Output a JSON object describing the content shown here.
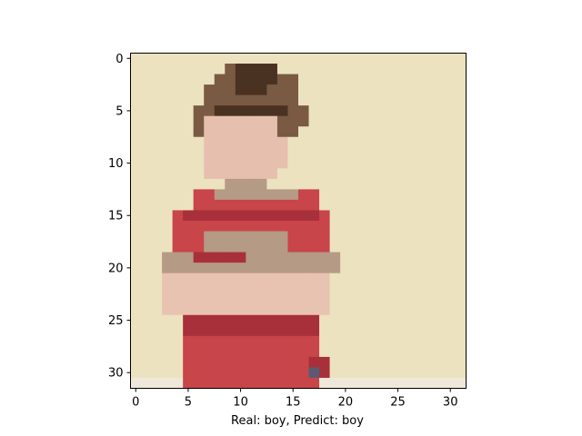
{
  "figure": {
    "caption": "Real: boy, Predict: boy",
    "image_description": "Pixelated 32x32 image of a boy with brown hair wearing a red shirt, arms crossed, against a pale beige background",
    "x_ticks": [
      "0",
      "5",
      "10",
      "15",
      "20",
      "25",
      "30"
    ],
    "y_ticks": [
      "0",
      "5",
      "10",
      "15",
      "20",
      "25",
      "30"
    ],
    "xlim": [
      -0.5,
      31.5
    ],
    "ylim": [
      31.5,
      -0.5
    ],
    "colors": {
      "background": "#ece2c0",
      "hair_dark": "#4a3222",
      "hair": "#7a5a42",
      "skin": "#e6bfae",
      "shirt_red": "#c8454a",
      "shirt_dark": "#a8303a",
      "stripe": "#b59a86",
      "arms": "#e9c3b2",
      "floor": "#efe8da"
    }
  }
}
